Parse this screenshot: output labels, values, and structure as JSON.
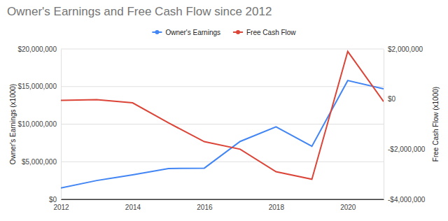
{
  "chart_data": {
    "type": "line",
    "title": "Owner's Earnings and Free Cash Flow since 2012",
    "x": [
      2012,
      2013,
      2014,
      2015,
      2016,
      2017,
      2018,
      2019,
      2020,
      2021
    ],
    "series": [
      {
        "name": "Owner's Earnings",
        "color": "#4285f4",
        "values": [
          1500000,
          2500000,
          3250000,
          4100000,
          4150000,
          7700000,
          9650000,
          7050000,
          15800000,
          14700000
        ]
      },
      {
        "name": "Free Cash Flow",
        "color": "#db4437",
        "axis": "y2",
        "values": [
          -50000,
          -20000,
          -150000,
          -950000,
          -1700000,
          -2000000,
          -2900000,
          -3200000,
          1900000,
          -100000
        ]
      }
    ],
    "xlim": [
      2012,
      2021
    ],
    "xticks": [
      2012,
      2014,
      2016,
      2018,
      2020
    ],
    "ylim": [
      0,
      20000000
    ],
    "yticks": [
      {
        "value": 0,
        "label": "$0"
      },
      {
        "value": 5000000,
        "label": "$5,000,000"
      },
      {
        "value": 10000000,
        "label": "$10,000,000"
      },
      {
        "value": 15000000,
        "label": "$15,000,000"
      },
      {
        "value": 20000000,
        "label": "$20,000,000"
      }
    ],
    "y2lim": [
      -4000000,
      2000000
    ],
    "y2ticks": [
      {
        "value": -4000000,
        "label": "-$4,000,000"
      },
      {
        "value": -2000000,
        "label": "-$2,000,000"
      },
      {
        "value": 0,
        "label": "$0"
      },
      {
        "value": 2000000,
        "label": "$2,000,000"
      }
    ],
    "y_label": "Owner's Earnings (x1000)",
    "y2_label": "Free Cash Flow (x1000)",
    "grid": true,
    "legend": "top"
  }
}
